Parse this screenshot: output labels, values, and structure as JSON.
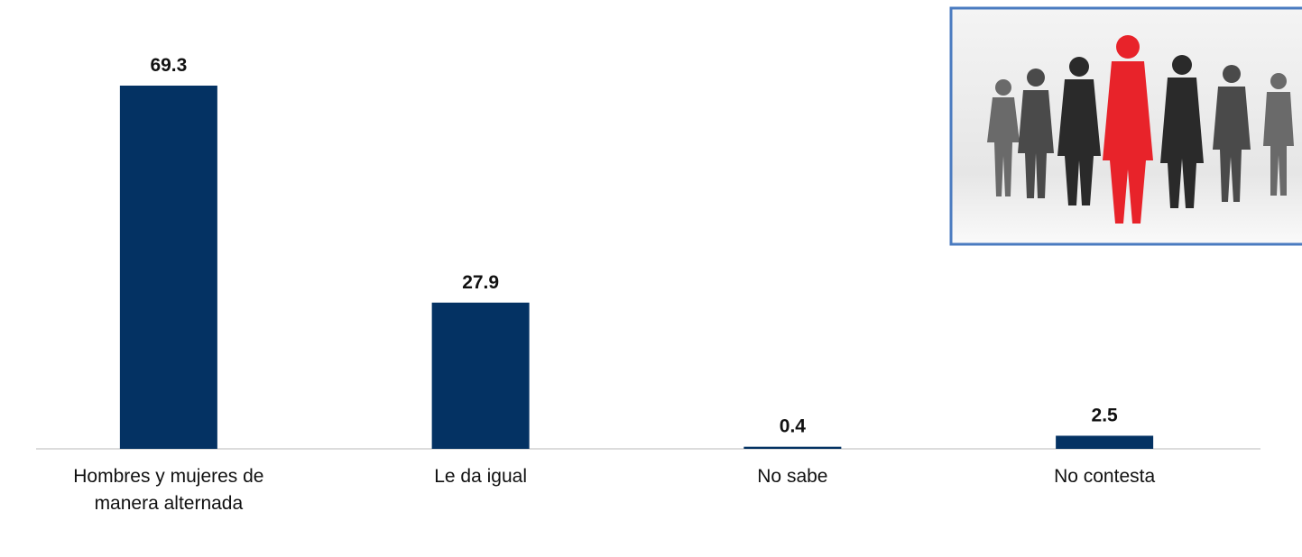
{
  "chart_data": {
    "type": "bar",
    "categories": [
      "Hombres y mujeres de manera alternada",
      "Le da igual",
      "No sabe",
      "No contesta"
    ],
    "values": [
      69.3,
      27.9,
      0.4,
      2.5
    ],
    "color": "#043263"
  }
}
